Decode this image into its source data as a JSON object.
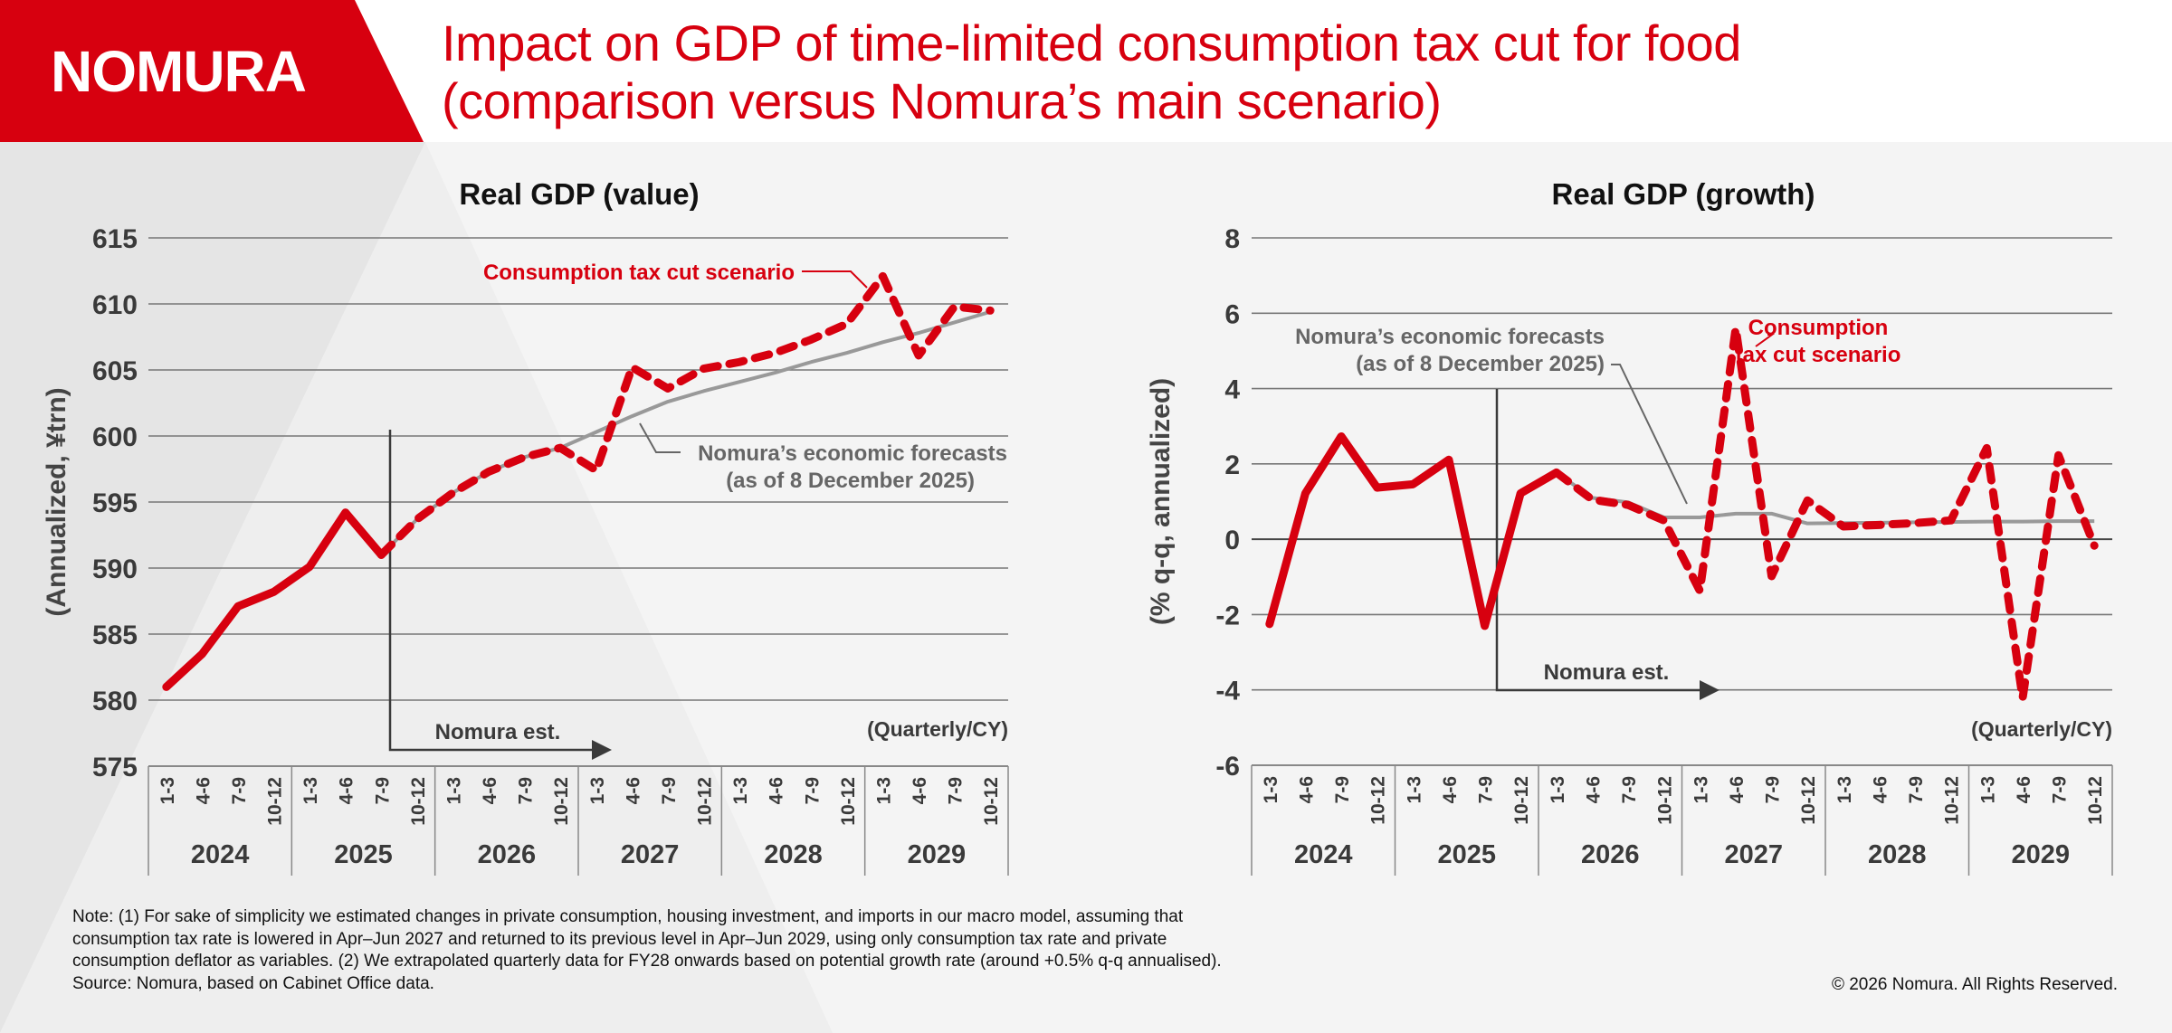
{
  "brand": {
    "logo_text": "NOMURA",
    "brand_color": "#d7000f"
  },
  "header": {
    "title_line1": "Impact on GDP of time-limited consumption tax cut for food",
    "title_line2": "(comparison versus Nomura’s main scenario)"
  },
  "chart_data": [
    {
      "type": "line",
      "title": "Real GDP (value)",
      "ylabel": "(Annualized, ¥trn)",
      "xlabel": "(Quarterly/CY)",
      "ylim": [
        575,
        615
      ],
      "yticks": [
        615,
        610,
        605,
        600,
        595,
        590,
        585,
        580,
        575
      ],
      "grid": true,
      "quarters": [
        "1-3",
        "4-6",
        "7-9",
        "10-12"
      ],
      "years": [
        "2024",
        "2025",
        "2026",
        "2027",
        "2028",
        "2029"
      ],
      "estimate_marker": {
        "label": "Nomura est.",
        "start_index": 7
      },
      "series": [
        {
          "name": "Consumption tax cut scenario",
          "color": "#d7000f",
          "style": "solid-then-dashed",
          "dashed_from_index": 7,
          "values": [
            581.0,
            583.5,
            587.1,
            588.2,
            590.1,
            594.2,
            591.0,
            593.7,
            595.7,
            597.3,
            598.4,
            599.1,
            597.4,
            605.2,
            603.6,
            605.1,
            605.6,
            606.3,
            607.3,
            608.5,
            612.1,
            606.1,
            609.8,
            609.5
          ]
        },
        {
          "name": "Nomura’s economic forecasts (as of 8 December 2025)",
          "color": "#999999",
          "style": "solid",
          "start_index": 6,
          "values": [
            null,
            null,
            null,
            null,
            null,
            null,
            591.0,
            593.7,
            595.7,
            597.3,
            598.4,
            599.1,
            600.3,
            601.5,
            602.6,
            603.4,
            604.1,
            604.8,
            605.6,
            606.3,
            607.1,
            607.8,
            608.6,
            609.4
          ]
        }
      ],
      "annotations": [
        {
          "text": "Consumption tax cut scenario",
          "color": "#d7000f"
        },
        {
          "text_line1": "Nomura’s economic forecasts",
          "text_line2": "(as of 8 December 2025)",
          "color": "#666666"
        }
      ]
    },
    {
      "type": "line",
      "title": "Real GDP (growth)",
      "ylabel": "(% q-q, annualized)",
      "xlabel": "(Quarterly/CY)",
      "ylim": [
        -6,
        8
      ],
      "yticks": [
        8,
        6,
        4,
        2,
        0,
        -2,
        -4,
        -6
      ],
      "grid": true,
      "quarters": [
        "1-3",
        "4-6",
        "7-9",
        "10-12"
      ],
      "years": [
        "2024",
        "2025",
        "2026",
        "2027",
        "2028",
        "2029"
      ],
      "estimate_marker": {
        "label": "Nomura est.",
        "start_index": 7
      },
      "series": [
        {
          "name": "Consumption tax cut scenario",
          "color": "#d7000f",
          "style": "solid-then-dashed",
          "dashed_from_index": 9,
          "values": [
            -2.25,
            1.22,
            2.73,
            1.37,
            1.46,
            2.11,
            -2.3,
            1.22,
            1.77,
            1.05,
            0.91,
            0.5,
            -1.37,
            5.6,
            -0.98,
            1.03,
            0.34,
            0.38,
            0.43,
            0.5,
            2.42,
            -4.22,
            2.23,
            -0.17
          ]
        },
        {
          "name": "Nomura’s economic forecasts (as of 8 December 2025)",
          "color": "#999999",
          "style": "solid",
          "start_index": 8,
          "values": [
            null,
            null,
            null,
            null,
            null,
            null,
            null,
            null,
            1.77,
            1.1,
            0.98,
            0.58,
            0.58,
            0.68,
            0.68,
            0.42,
            0.43,
            0.44,
            0.45,
            0.46,
            0.47,
            0.47,
            0.48,
            0.48
          ]
        }
      ],
      "annotations": [
        {
          "text_line1": "Consumption",
          "text_line2": "tax cut scenario",
          "color": "#d7000f"
        },
        {
          "text_line1": "Nomura’s economic forecasts",
          "text_line2": "(as of 8 December 2025)",
          "color": "#666666"
        }
      ]
    }
  ],
  "footer": {
    "note_line1": "Note: (1) For sake of simplicity we estimated changes in private consumption, housing investment, and imports in our macro model, assuming that",
    "note_line2": "consumption tax rate is lowered in Apr–Jun 2027 and returned to its previous level in Apr–Jun 2029, using only consumption tax rate and private",
    "note_line3": "consumption deflator as variables. (2) We extrapolated quarterly data for FY28 onwards based on potential growth rate (around +0.5% q-q annualised).",
    "source": "Source: Nomura, based on Cabinet Office data.",
    "copyright": "© 2026 Nomura. All Rights Reserved."
  }
}
